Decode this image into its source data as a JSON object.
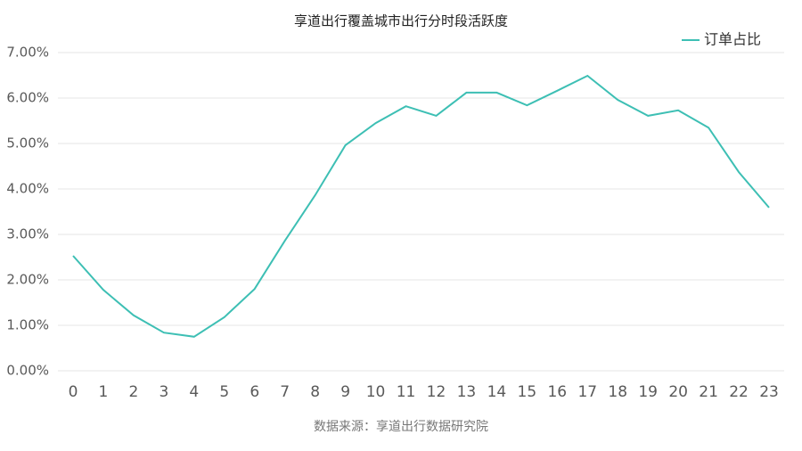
{
  "chart_data": {
    "type": "line",
    "title": "享道出行覆盖城市出行分时段活跃度",
    "categories": [
      "0",
      "1",
      "2",
      "3",
      "4",
      "5",
      "6",
      "7",
      "8",
      "9",
      "10",
      "11",
      "12",
      "13",
      "14",
      "15",
      "16",
      "17",
      "18",
      "19",
      "20",
      "21",
      "22",
      "23"
    ],
    "series": [
      {
        "name": "订单占比",
        "color": "#3dbfb4",
        "values": [
          2.53,
          1.78,
          1.22,
          0.84,
          0.75,
          1.18,
          1.8,
          2.86,
          3.86,
          4.96,
          5.45,
          5.82,
          5.61,
          6.12,
          6.12,
          5.84,
          6.16,
          6.49,
          5.96,
          5.61,
          5.73,
          5.35,
          4.37,
          3.59
        ]
      }
    ],
    "ylim": [
      0,
      7
    ],
    "yticks": [
      {
        "value": 0,
        "label": "0.00%"
      },
      {
        "value": 1,
        "label": "1.00%"
      },
      {
        "value": 2,
        "label": "2.00%"
      },
      {
        "value": 3,
        "label": "3.00%"
      },
      {
        "value": 4,
        "label": "4.00%"
      },
      {
        "value": 5,
        "label": "5.00%"
      },
      {
        "value": 6,
        "label": "6.00%"
      },
      {
        "value": 7,
        "label": "7.00%"
      }
    ],
    "grid": true,
    "legend": "upper right",
    "source": "数据来源：享道出行数据研究院"
  }
}
